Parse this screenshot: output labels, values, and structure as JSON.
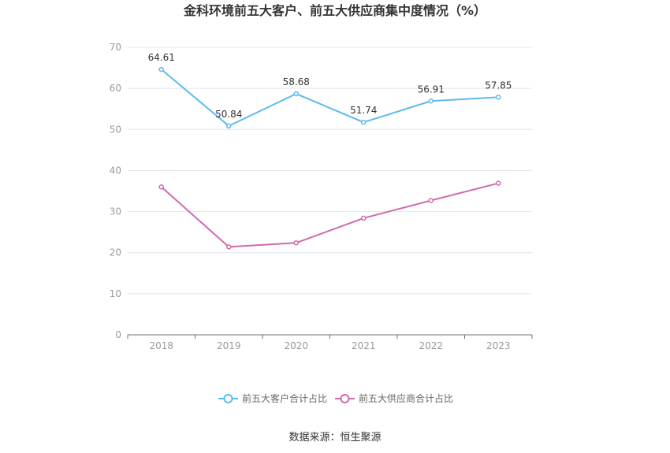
{
  "title": "金科环境前五大客户、前五大供应商集中度情况（%）",
  "source": "数据来源：恒生聚源",
  "chart_data": {
    "type": "line",
    "title": "金科环境前五大客户、前五大供应商集中度情况（%）",
    "x": [
      "2018",
      "2019",
      "2020",
      "2021",
      "2022",
      "2023"
    ],
    "ylim": [
      0,
      70
    ],
    "yticks": [
      0,
      10,
      20,
      30,
      40,
      50,
      60,
      70
    ],
    "grid": true,
    "legend_position": "bottom",
    "series": [
      {
        "name": "前五大客户合计占比",
        "color": "#5bbcec",
        "values": [
          64.61,
          50.84,
          58.68,
          51.74,
          56.91,
          57.85
        ],
        "labels": [
          "64.61",
          "50.84",
          "58.68",
          "51.74",
          "56.91",
          "57.85"
        ]
      },
      {
        "name": "前五大供应商合计占比",
        "color": "#d06aae",
        "values": [
          36.0,
          21.4,
          22.4,
          28.4,
          32.7,
          36.9
        ]
      }
    ]
  }
}
